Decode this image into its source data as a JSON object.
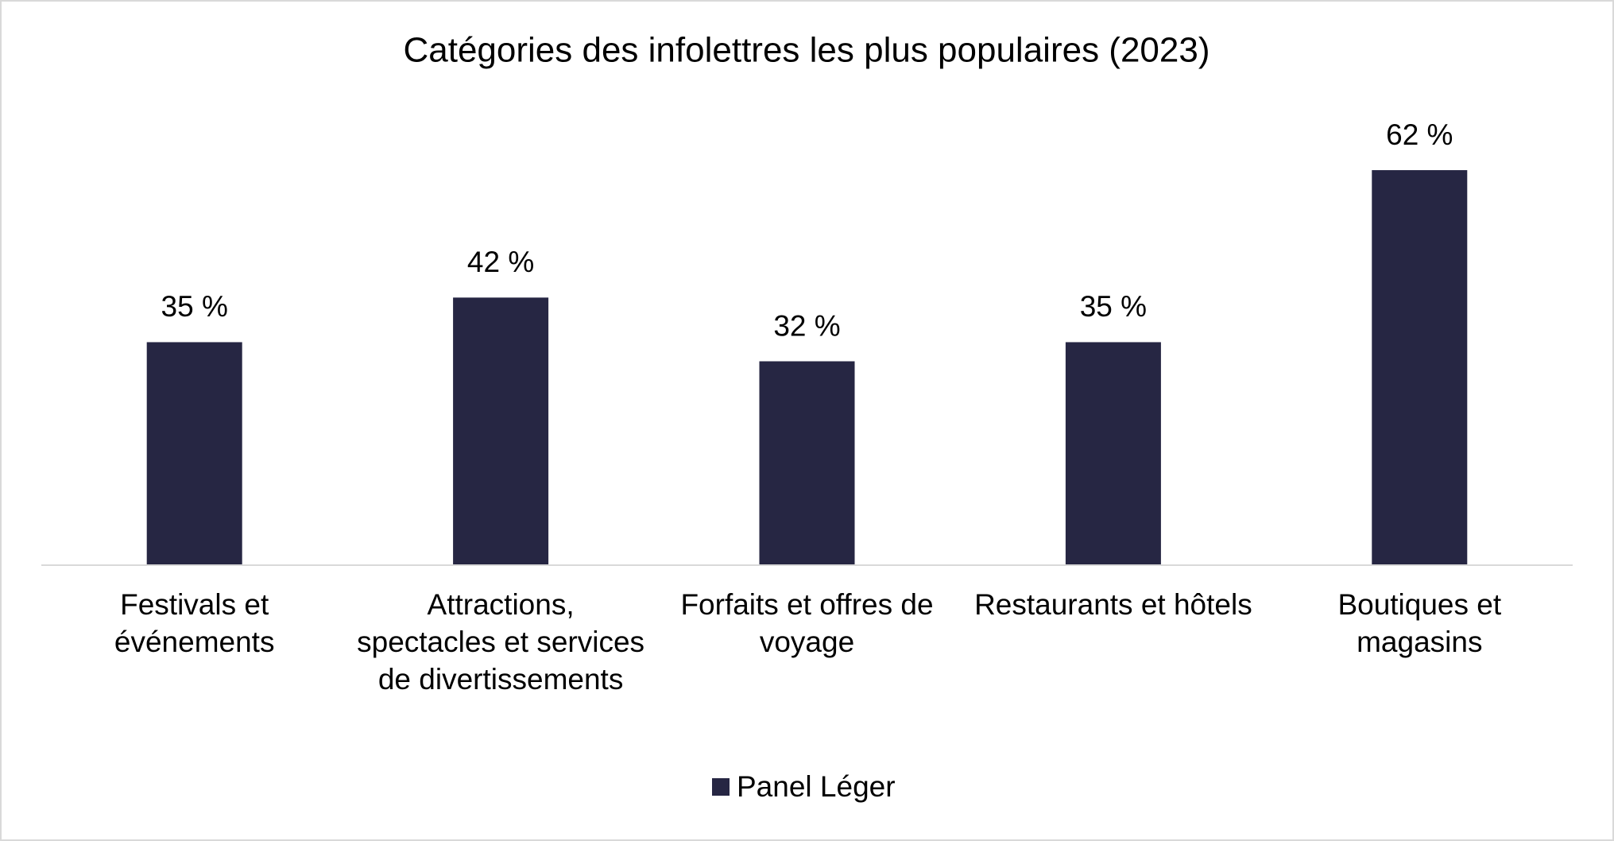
{
  "chart_data": {
    "type": "bar",
    "title": "Catégories des infolettres les plus populaires (2023)",
    "categories": [
      "Festivals et événements",
      "Attractions, spectacles et services de divertissements",
      "Forfaits et offres de voyage",
      "Restaurants et hôtels",
      "Boutiques et magasins"
    ],
    "series": [
      {
        "name": "Panel Léger",
        "color": "#262643",
        "values": [
          35,
          42,
          32,
          35,
          62
        ],
        "value_labels": [
          "35 %",
          "42 %",
          "32 %",
          "35 %",
          "62 %"
        ]
      }
    ],
    "ylim": [
      0,
      65
    ],
    "legend": "bottom"
  }
}
